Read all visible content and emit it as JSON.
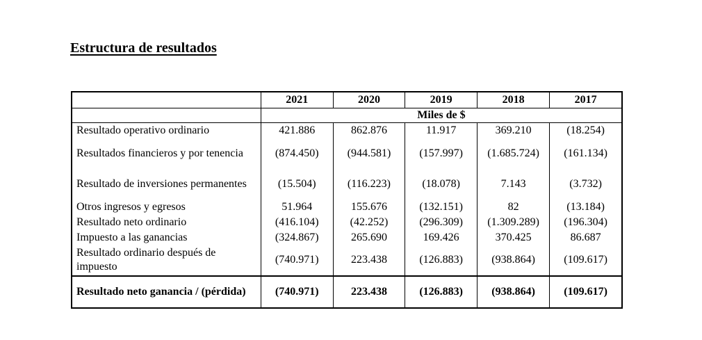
{
  "title": "Estructura de resultados",
  "table": {
    "years": [
      "2021",
      "2020",
      "2019",
      "2018",
      "2017"
    ],
    "units": "Miles de $",
    "rows": [
      {
        "label": "Resultado operativo ordinario",
        "values": [
          "421.886",
          "862.876",
          "11.917",
          "369.210",
          "(18.254)"
        ]
      },
      {
        "label": "Resultados financieros y por tenencia",
        "values": [
          "(874.450)",
          "(944.581)",
          "(157.997)",
          "(1.685.724)",
          "(161.134)"
        ]
      },
      {
        "label": "Resultado de inversiones permanentes",
        "values": [
          "(15.504)",
          "(116.223)",
          "(18.078)",
          "7.143",
          "(3.732)"
        ]
      },
      {
        "label": "Otros ingresos y egresos",
        "values": [
          "51.964",
          "155.676",
          "(132.151)",
          "82",
          "(13.184)"
        ]
      },
      {
        "label": "Resultado neto ordinario",
        "values": [
          "(416.104)",
          "(42.252)",
          "(296.309)",
          "(1.309.289)",
          "(196.304)"
        ]
      },
      {
        "label": "Impuesto a las ganancias",
        "values": [
          "(324.867)",
          "265.690",
          "169.426",
          "370.425",
          "86.687"
        ]
      },
      {
        "label": "Resultado ordinario después de impuesto",
        "values": [
          "(740.971)",
          "223.438",
          "(126.883)",
          "(938.864)",
          "(109.617)"
        ]
      }
    ],
    "total": {
      "label": "Resultado neto ganancia / (pérdida)",
      "values": [
        "(740.971)",
        "223.438",
        "(126.883)",
        "(938.864)",
        "(109.617)"
      ]
    }
  }
}
